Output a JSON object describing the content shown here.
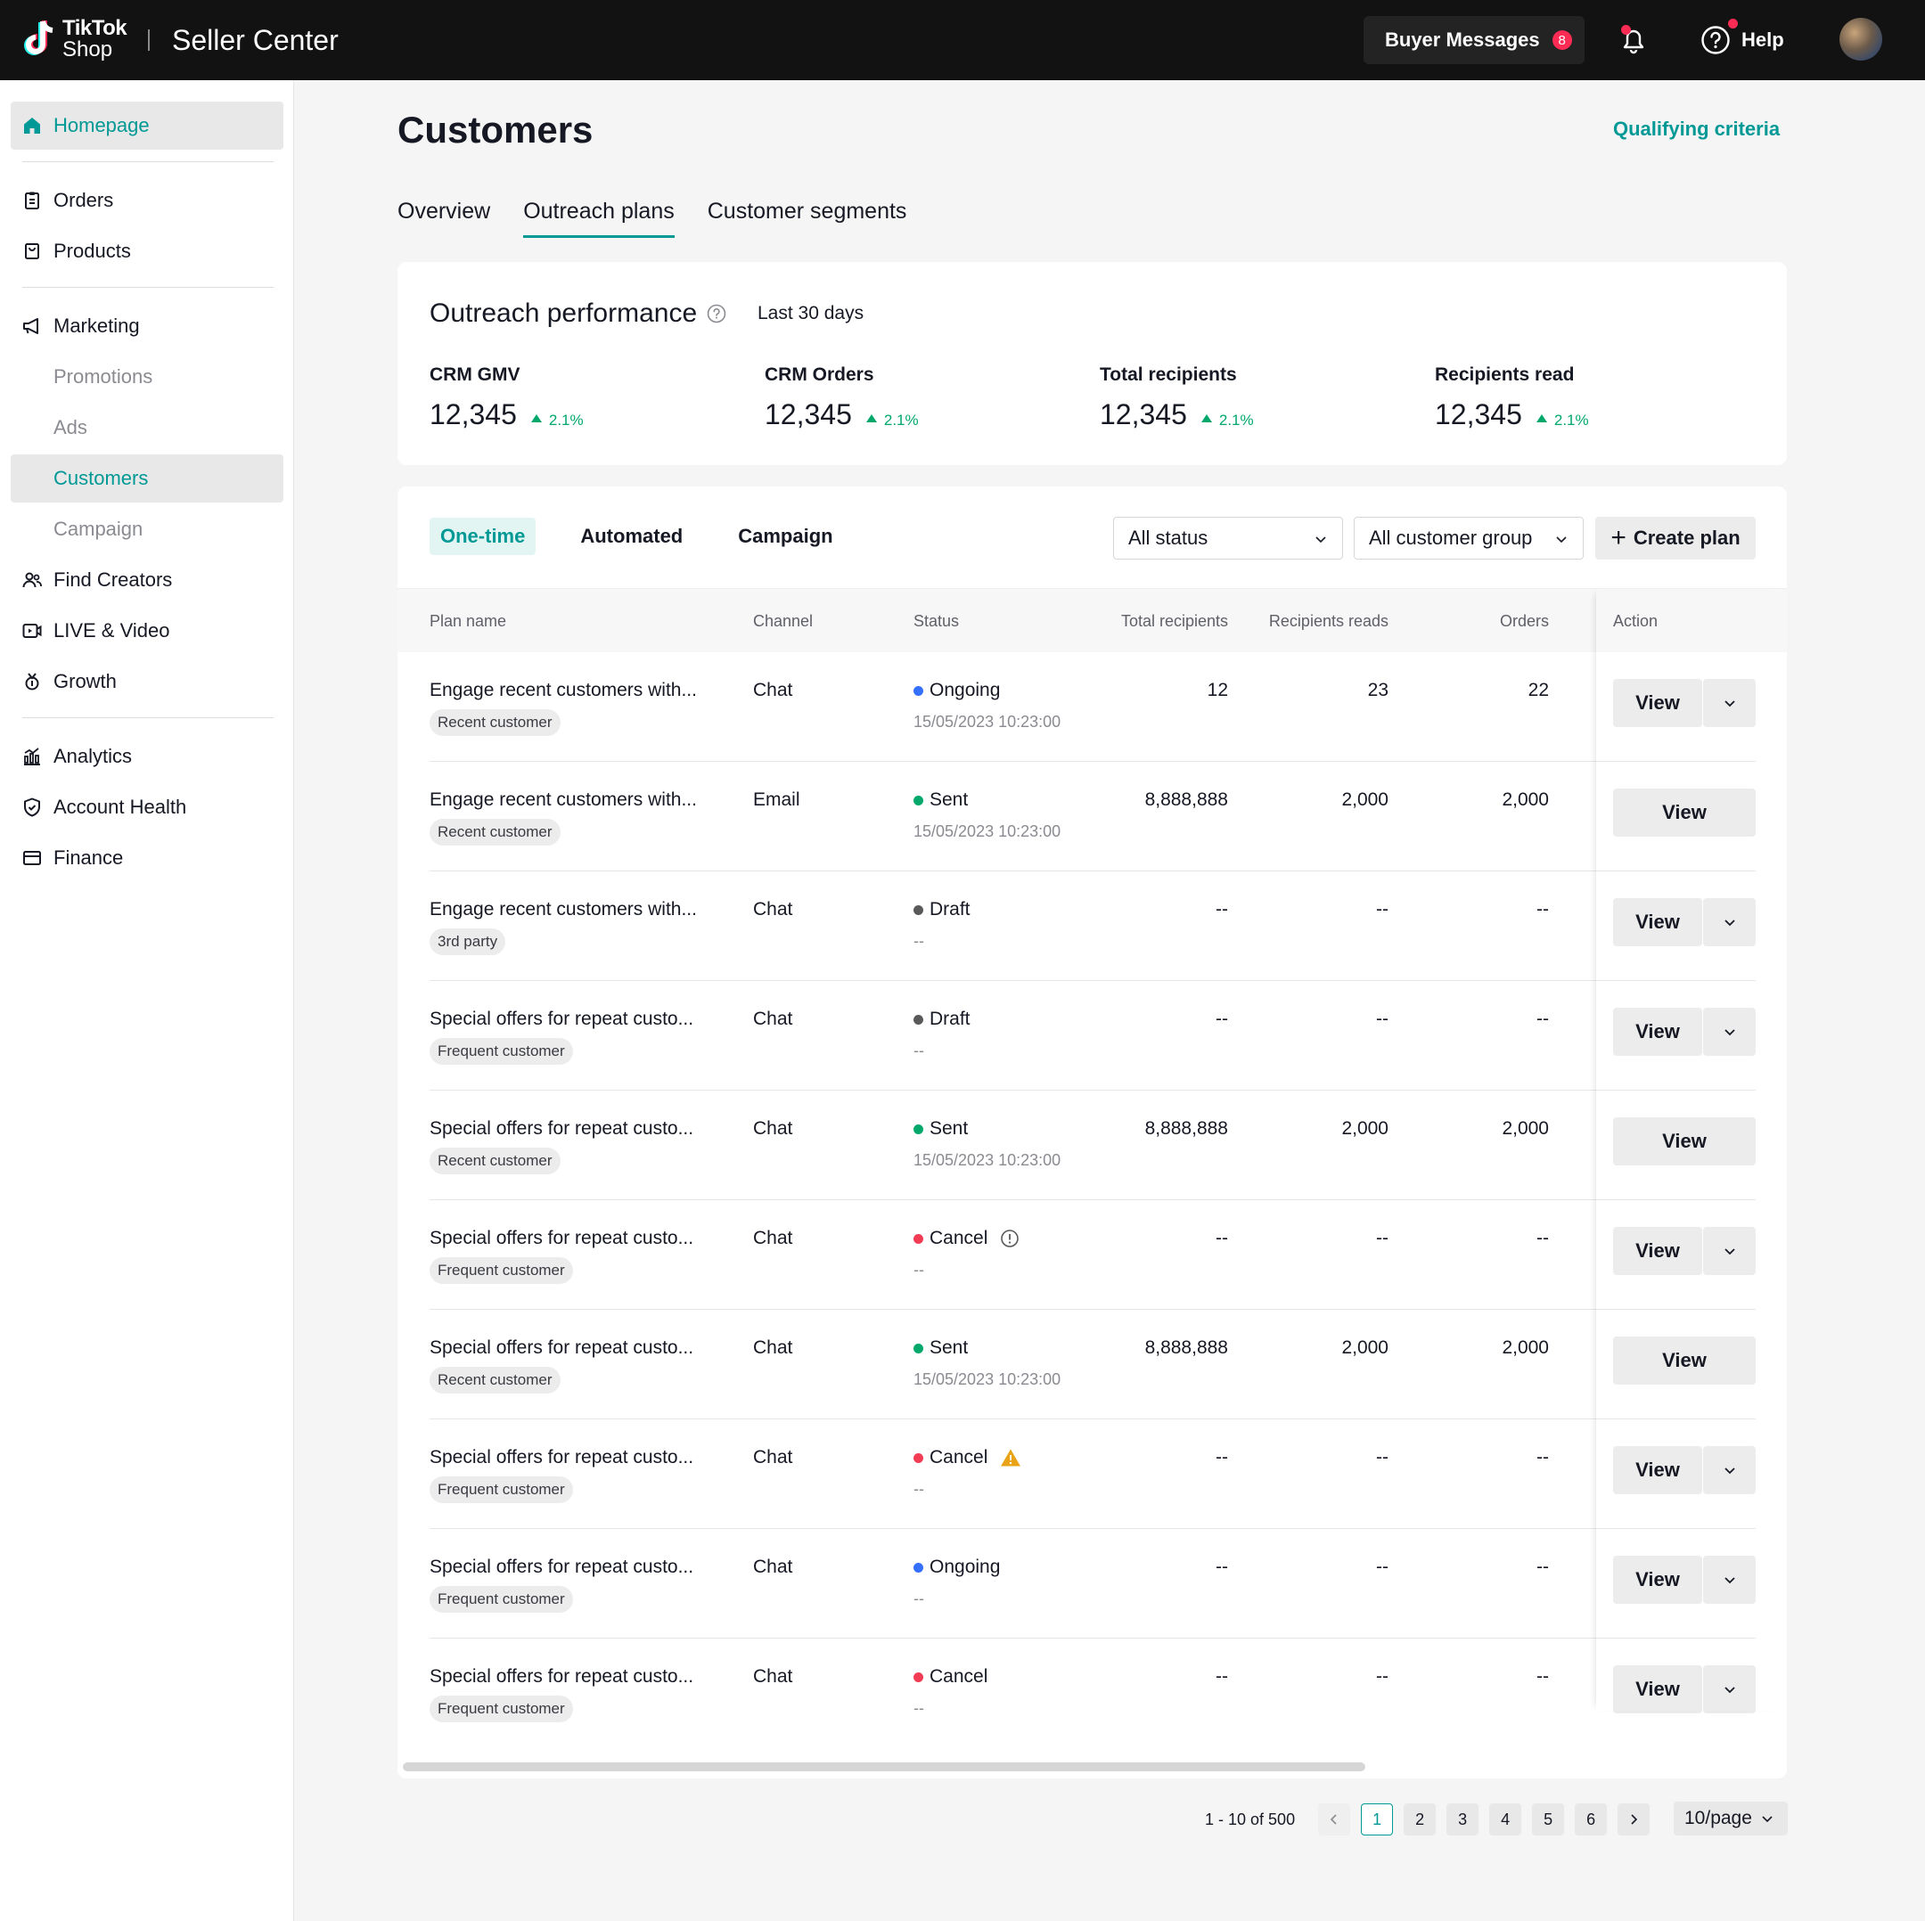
{
  "header": {
    "logo_line1": "TikTok",
    "logo_line2": "Shop",
    "app_title": "Seller Center",
    "buyer_messages_label": "Buyer Messages",
    "buyer_messages_count": "8",
    "help_label": "Help"
  },
  "sidebar": {
    "items": [
      {
        "label": "Homepage",
        "icon": "home-icon"
      },
      {
        "label": "Orders",
        "icon": "clipboard-icon"
      },
      {
        "label": "Products",
        "icon": "bag-icon"
      },
      {
        "label": "Marketing",
        "icon": "megaphone-icon"
      },
      {
        "label": "Promotions"
      },
      {
        "label": "Ads"
      },
      {
        "label": "Customers"
      },
      {
        "label": "Campaign"
      },
      {
        "label": "Find Creators",
        "icon": "people-icon"
      },
      {
        "label": "LIVE & Video",
        "icon": "video-icon"
      },
      {
        "label": "Growth",
        "icon": "medal-icon"
      },
      {
        "label": "Analytics",
        "icon": "chart-icon"
      },
      {
        "label": "Account Health",
        "icon": "shield-icon"
      },
      {
        "label": "Finance",
        "icon": "wallet-icon"
      }
    ]
  },
  "page": {
    "title": "Customers",
    "qualifying_link": "Qualifying criteria",
    "tabs": [
      "Overview",
      "Outreach plans",
      "Customer segments"
    ],
    "active_tab": "Outreach plans"
  },
  "performance": {
    "title": "Outreach performance",
    "range": "Last 30 days",
    "metrics": [
      {
        "label": "CRM GMV",
        "value": "12,345",
        "delta": "2.1%"
      },
      {
        "label": "CRM Orders",
        "value": "12,345",
        "delta": "2.1%"
      },
      {
        "label": "Total recipients",
        "value": "12,345",
        "delta": "2.1%"
      },
      {
        "label": "Recipients read",
        "value": "12,345",
        "delta": "2.1%"
      }
    ]
  },
  "plans": {
    "subtabs": [
      "One-time",
      "Automated",
      "Campaign"
    ],
    "active_subtab": "One-time",
    "status_filter": "All status",
    "group_filter": "All customer group",
    "create_label": "Create plan",
    "columns": [
      "Plan name",
      "Channel",
      "Status",
      "Total recipients",
      "Recipients reads",
      "Orders",
      "Action"
    ],
    "status_colors": {
      "Ongoing": "#3370ff",
      "Sent": "#00a86b",
      "Draft": "#595959",
      "Cancel": "#f23c54"
    },
    "rows": [
      {
        "name": "Engage recent customers with...",
        "tag": "Recent customer",
        "channel": "Chat",
        "status": "Ongoing",
        "time": "15/05/2023 10:23:00",
        "recipients": "12",
        "reads": "23",
        "orders": "22",
        "action": "View",
        "split": true,
        "note_icon": ""
      },
      {
        "name": "Engage recent customers with...",
        "tag": "Recent customer",
        "channel": "Email",
        "status": "Sent",
        "time": "15/05/2023 10:23:00",
        "recipients": "8,888,888",
        "reads": "2,000",
        "orders": "2,000",
        "action": "View",
        "split": false,
        "note_icon": ""
      },
      {
        "name": "Engage recent customers with...",
        "tag": "3rd party",
        "channel": "Chat",
        "status": "Draft",
        "time": "--",
        "recipients": "--",
        "reads": "--",
        "orders": "--",
        "action": "View",
        "split": true,
        "note_icon": ""
      },
      {
        "name": "Special offers for repeat custo...",
        "tag": "Frequent customer",
        "channel": "Chat",
        "status": "Draft",
        "time": "--",
        "recipients": "--",
        "reads": "--",
        "orders": "--",
        "action": "View",
        "split": true,
        "note_icon": ""
      },
      {
        "name": "Special offers for repeat custo...",
        "tag": "Recent customer",
        "channel": "Chat",
        "status": "Sent",
        "time": "15/05/2023 10:23:00",
        "recipients": "8,888,888",
        "reads": "2,000",
        "orders": "2,000",
        "action": "View",
        "split": false,
        "note_icon": ""
      },
      {
        "name": "Special offers for repeat custo...",
        "tag": "Frequent customer",
        "channel": "Chat",
        "status": "Cancel",
        "time": "--",
        "recipients": "--",
        "reads": "--",
        "orders": "--",
        "action": "View",
        "split": true,
        "note_icon": "info-icon"
      },
      {
        "name": "Special offers for repeat custo...",
        "tag": "Recent customer",
        "channel": "Chat",
        "status": "Sent",
        "time": "15/05/2023 10:23:00",
        "recipients": "8,888,888",
        "reads": "2,000",
        "orders": "2,000",
        "action": "View",
        "split": false,
        "note_icon": ""
      },
      {
        "name": "Special offers for repeat custo...",
        "tag": "Frequent customer",
        "channel": "Chat",
        "status": "Cancel",
        "time": "--",
        "recipients": "--",
        "reads": "--",
        "orders": "--",
        "action": "View",
        "split": true,
        "note_icon": "warning-icon"
      },
      {
        "name": "Special offers for repeat custo...",
        "tag": "Frequent customer",
        "channel": "Chat",
        "status": "Ongoing",
        "time": "--",
        "recipients": "--",
        "reads": "--",
        "orders": "--",
        "action": "View",
        "split": true,
        "note_icon": ""
      },
      {
        "name": "Special offers for repeat custo...",
        "tag": "Frequent customer",
        "channel": "Chat",
        "status": "Cancel",
        "time": "--",
        "recipients": "--",
        "reads": "--",
        "orders": "--",
        "action": "View",
        "split": true,
        "note_icon": ""
      }
    ]
  },
  "pagination": {
    "summary": "1 - 10 of 500",
    "pages": [
      "1",
      "2",
      "3",
      "4",
      "5",
      "6"
    ],
    "current": "1",
    "page_size": "10/page"
  },
  "colors": {
    "accent": "#009995",
    "topbar": "#121212",
    "positive": "#00a86b",
    "badge": "#fe2c55"
  }
}
